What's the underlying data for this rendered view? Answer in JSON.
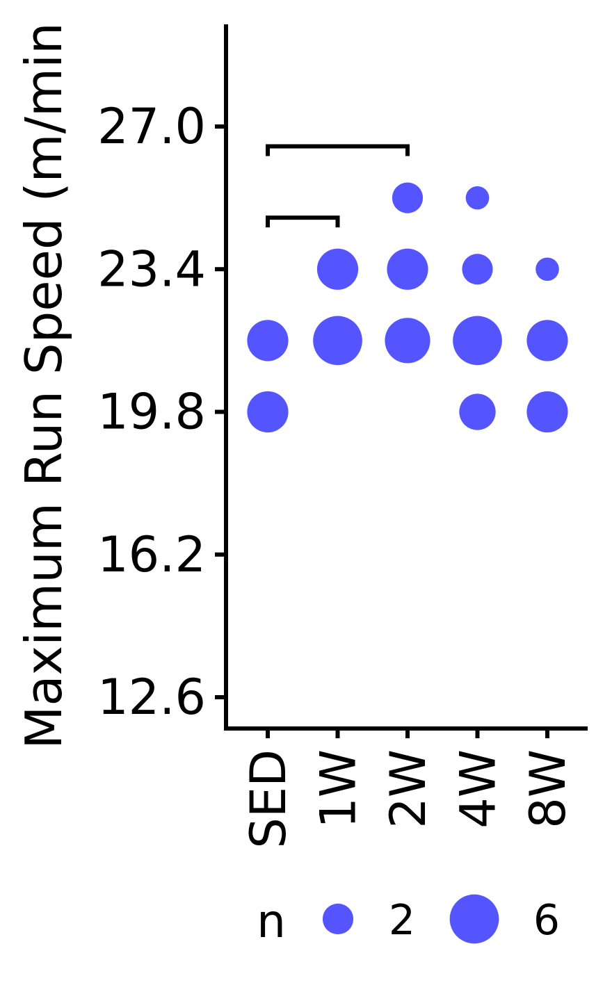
{
  "chart_data": {
    "type": "scatter",
    "ylabel": "Maximum Run Speed (m/min",
    "xlabel": "",
    "categories": [
      "SED",
      "1W",
      "2W",
      "4W",
      "8W"
    ],
    "yticks": [
      "12.6",
      "16.2",
      "19.8",
      "23.4",
      "27.0"
    ],
    "ylim": [
      11.8,
      29.6
    ],
    "points": [
      {
        "category": "SED",
        "y": 21.6,
        "n": 4
      },
      {
        "category": "SED",
        "y": 19.8,
        "n": 4
      },
      {
        "category": "1W",
        "y": 23.4,
        "n": 4
      },
      {
        "category": "1W",
        "y": 21.6,
        "n": 6
      },
      {
        "category": "2W",
        "y": 25.2,
        "n": 2
      },
      {
        "category": "2W",
        "y": 23.4,
        "n": 4
      },
      {
        "category": "2W",
        "y": 21.6,
        "n": 5
      },
      {
        "category": "4W",
        "y": 25.2,
        "n": 1
      },
      {
        "category": "4W",
        "y": 23.4,
        "n": 2
      },
      {
        "category": "4W",
        "y": 21.6,
        "n": 6
      },
      {
        "category": "4W",
        "y": 19.8,
        "n": 3
      },
      {
        "category": "8W",
        "y": 23.4,
        "n": 1
      },
      {
        "category": "8W",
        "y": 21.6,
        "n": 4
      },
      {
        "category": "8W",
        "y": 19.8,
        "n": 4
      }
    ],
    "significance_brackets": [
      {
        "from": "SED",
        "to": "1W",
        "y": 24.7
      },
      {
        "from": "SED",
        "to": "2W",
        "y": 26.5
      }
    ],
    "legend": {
      "title": "n",
      "entries": [
        {
          "label": "2",
          "n": 2
        },
        {
          "label": "6",
          "n": 6
        }
      ],
      "position": "bottom"
    },
    "grid": false,
    "point_color": "#5555ff"
  }
}
